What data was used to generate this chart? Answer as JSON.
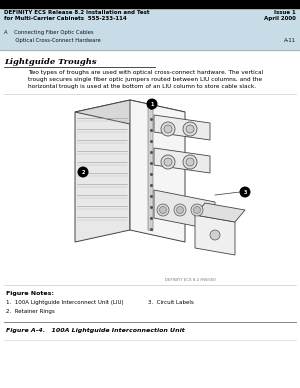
{
  "page_bg": "#ffffff",
  "top_bar_color": "#000000",
  "header_bg": "#c8dce8",
  "header_text_left1": "DEFINITY ECS Release 8.2 Installation and Test",
  "header_text_left2": "for Multi-Carrier Cabinets  555-233-114",
  "header_text_right1": "Issue 1",
  "header_text_right2": "April 2000",
  "header_sub_left1": "A    Connecting Fiber Optic Cables",
  "header_sub_left2": "       Optical Cross-Connect Hardware",
  "header_sub_right": "A-11",
  "section_title": "Lightguide Troughs",
  "body_text_line1": "Two types of troughs are used with optical cross-connect hardware. The vertical",
  "body_text_line2": "trough secures single fiber optic jumpers routed between LIU columns, and the",
  "body_text_line3": "horizontal trough is used at the bottom of an LIU column to store cable slack.",
  "figure_notes_title": "Figure Notes:",
  "figure_note1a": "1.  100A Lightguide Interconnect Unit (LIU)",
  "figure_note1b": "3.  Circuit Labels",
  "figure_note2": "2.  Retainer Rings",
  "figure_caption": "Figure A-4.   100A Lightguide Interconnection Unit",
  "fig_small_label": "DEFINITY ECS 8.2 HW/500",
  "text_color": "#000000",
  "light_gray": "#aaaaaa",
  "mid_gray": "#888888",
  "dark_gray": "#444444"
}
